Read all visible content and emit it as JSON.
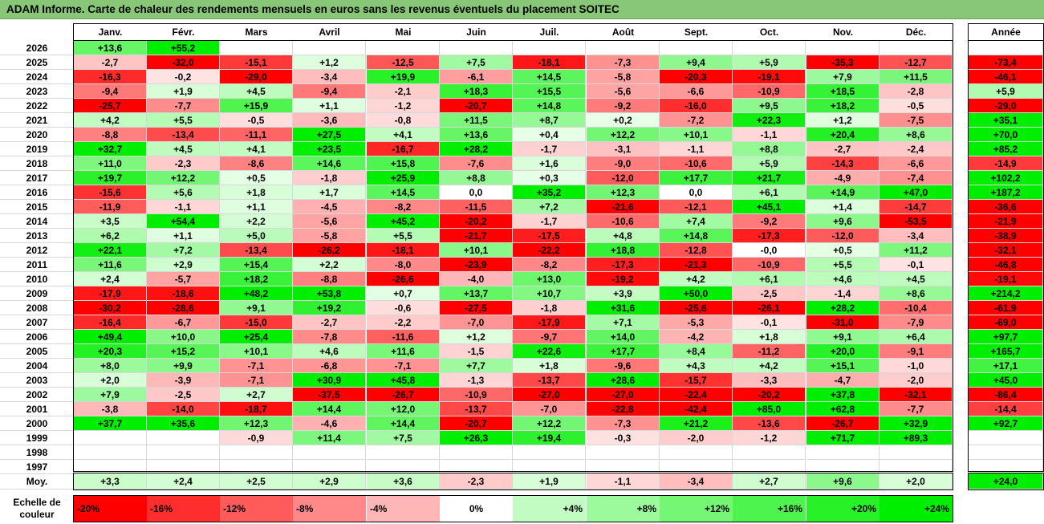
{
  "title": "ADAM Informe. Carte de chaleur des rendements mensuels en euros sans les revenus éventuels du placement SOITEC",
  "chart_data": {
    "type": "heatmap",
    "columns": [
      "Janv.",
      "Févr.",
      "Mars",
      "Avril",
      "Mai",
      "Juin",
      "Juil.",
      "Août",
      "Sept.",
      "Oct.",
      "Nov.",
      "Déc."
    ],
    "annual_header": "Année",
    "avg_label": "Moy.",
    "rows": [
      {
        "year": "2026",
        "months": [
          "+13,6",
          "+55,2",
          "",
          "",
          "",
          "",
          "",
          "",
          "",
          "",
          "",
          ""
        ],
        "annual": ""
      },
      {
        "year": "2025",
        "months": [
          "-2,7",
          "-32,0",
          "-15,1",
          "+1,2",
          "-12,5",
          "+7,5",
          "-18,1",
          "-7,3",
          "+9,4",
          "+5,9",
          "-35,3",
          "-12,7"
        ],
        "annual": "-73,4"
      },
      {
        "year": "2024",
        "months": [
          "-16,3",
          "-0,2",
          "-29,0",
          "-3,4",
          "+19,9",
          "-6,1",
          "+14,5",
          "-5,8",
          "-20,3",
          "-19,1",
          "+7,9",
          "+11,5"
        ],
        "annual": "-46,1"
      },
      {
        "year": "2023",
        "months": [
          "-9,4",
          "+1,9",
          "+4,5",
          "-9,4",
          "-2,1",
          "+18,3",
          "+15,5",
          "-5,6",
          "-6,6",
          "-10,9",
          "+18,5",
          "-2,8"
        ],
        "annual": "+5,9"
      },
      {
        "year": "2022",
        "months": [
          "-25,7",
          "-7,7",
          "+15,9",
          "+1,1",
          "-1,2",
          "-20,7",
          "+14,8",
          "-9,2",
          "-16,0",
          "+9,5",
          "+18,2",
          "-0,5"
        ],
        "annual": "-29,0"
      },
      {
        "year": "2021",
        "months": [
          "+4,2",
          "+5,5",
          "-0,5",
          "-3,6",
          "-0,8",
          "+11,5",
          "+8,7",
          "+0,2",
          "-7,2",
          "+22,3",
          "+1,2",
          "-7,5"
        ],
        "annual": "+35,1"
      },
      {
        "year": "2020",
        "months": [
          "-8,8",
          "-13,4",
          "-11,1",
          "+27,5",
          "+4,1",
          "+13,6",
          "+0,4",
          "+12,2",
          "+10,1",
          "-1,1",
          "+20,4",
          "+8,6"
        ],
        "annual": "+70,0"
      },
      {
        "year": "2019",
        "months": [
          "+32,7",
          "+4,5",
          "+4,1",
          "+23,5",
          "-16,7",
          "+28,2",
          "-1,7",
          "-3,1",
          "-1,1",
          "+8,8",
          "-2,7",
          "-2,4"
        ],
        "annual": "+85,2"
      },
      {
        "year": "2018",
        "months": [
          "+11,0",
          "-2,3",
          "-8,6",
          "+14,6",
          "+15,8",
          "-7,6",
          "+1,6",
          "-9,0",
          "-10,6",
          "+5,9",
          "-14,3",
          "-6,6"
        ],
        "annual": "-14,9"
      },
      {
        "year": "2017",
        "months": [
          "+19,7",
          "+12,2",
          "+0,5",
          "-1,8",
          "+25,9",
          "+8,8",
          "+0,3",
          "-12,0",
          "+17,7",
          "+21,7",
          "-4,9",
          "-7,4"
        ],
        "annual": "+102,2"
      },
      {
        "year": "2016",
        "months": [
          "-15,6",
          "+5,6",
          "+1,8",
          "+1,7",
          "+14,5",
          "0,0",
          "+35,2",
          "+12,3",
          "0,0",
          "+6,1",
          "+14,9",
          "+47,0"
        ],
        "annual": "+187,2"
      },
      {
        "year": "2015",
        "months": [
          "-11,9",
          "-1,1",
          "+1,1",
          "-4,5",
          "-8,2",
          "-11,5",
          "+7,2",
          "-21,6",
          "-12,1",
          "+45,1",
          "+1,4",
          "-14,7"
        ],
        "annual": "-36,6"
      },
      {
        "year": "2014",
        "months": [
          "+3,5",
          "+54,4",
          "+2,2",
          "-5,6",
          "+45,2",
          "-20,2",
          "-1,7",
          "-10,6",
          "+7,4",
          "-9,2",
          "+9,6",
          "-53,5"
        ],
        "annual": "-21,9"
      },
      {
        "year": "2013",
        "months": [
          "+6,2",
          "+1,1",
          "+5,0",
          "-5,8",
          "+5,5",
          "-21,7",
          "-17,5",
          "+4,8",
          "+14,8",
          "-17,3",
          "-12,0",
          "-3,4"
        ],
        "annual": "-38,9"
      },
      {
        "year": "2012",
        "months": [
          "+22,1",
          "+7,2",
          "-13,4",
          "-26,2",
          "-18,1",
          "+10,1",
          "-22,2",
          "+18,8",
          "-12,8",
          "-0,0",
          "+0,5",
          "+11,2"
        ],
        "annual": "-32,1"
      },
      {
        "year": "2011",
        "months": [
          "+11,6",
          "+2,9",
          "+15,4",
          "+2,2",
          "-8,0",
          "-23,9",
          "-8,2",
          "-17,3",
          "-21,3",
          "-10,9",
          "+5,5",
          "-0,1"
        ],
        "annual": "-46,8"
      },
      {
        "year": "2010",
        "months": [
          "+2,4",
          "-5,7",
          "+18,2",
          "-8,8",
          "-26,6",
          "-4,0",
          "+13,0",
          "-19,2",
          "+4,2",
          "+6,1",
          "+4,6",
          "+4,5"
        ],
        "annual": "-19,1"
      },
      {
        "year": "2009",
        "months": [
          "-17,9",
          "-18,6",
          "+48,2",
          "+53,8",
          "+0,7",
          "+13,7",
          "+10,7",
          "+3,9",
          "+50,0",
          "-2,5",
          "-1,4",
          "+8,6"
        ],
        "annual": "+214,2"
      },
      {
        "year": "2008",
        "months": [
          "-30,2",
          "-28,6",
          "+9,1",
          "+19,2",
          "-0,6",
          "-27,5",
          "-1,8",
          "+31,6",
          "-25,6",
          "-26,1",
          "+28,2",
          "-10,4"
        ],
        "annual": "-61,9"
      },
      {
        "year": "2007",
        "months": [
          "-16,4",
          "-6,7",
          "-15,0",
          "-2,7",
          "-2,2",
          "-7,0",
          "-17,9",
          "+7,1",
          "-5,3",
          "-0,1",
          "-31,0",
          "-7,9"
        ],
        "annual": "-69,0"
      },
      {
        "year": "2006",
        "months": [
          "+49,4",
          "+10,0",
          "+25,4",
          "-7,8",
          "-11,6",
          "+1,2",
          "-9,7",
          "+14,0",
          "-4,2",
          "+1,8",
          "+9,1",
          "+6,4"
        ],
        "annual": "+97,7"
      },
      {
        "year": "2005",
        "months": [
          "+20,3",
          "+15,2",
          "+10,1",
          "+4,6",
          "+11,6",
          "-1,5",
          "+22,6",
          "+17,7",
          "+8,4",
          "-11,2",
          "+20,0",
          "-9,1"
        ],
        "annual": "+165,7"
      },
      {
        "year": "2004",
        "months": [
          "+8,0",
          "+9,9",
          "-7,1",
          "-6,8",
          "-7,1",
          "+7,7",
          "+1,8",
          "-9,6",
          "+4,3",
          "+4,2",
          "+15,1",
          "-1,0"
        ],
        "annual": "+17,1"
      },
      {
        "year": "2003",
        "months": [
          "+2,0",
          "-3,9",
          "-7,1",
          "+30,9",
          "+45,8",
          "-1,3",
          "-13,7",
          "+28,6",
          "-15,7",
          "-3,3",
          "-4,7",
          "-2,0"
        ],
        "annual": "+45,0"
      },
      {
        "year": "2002",
        "months": [
          "+7,9",
          "-2,5",
          "+2,7",
          "-37,5",
          "-26,7",
          "-10,9",
          "-27,0",
          "-27,0",
          "-22,4",
          "-20,2",
          "+37,8",
          "-32,1"
        ],
        "annual": "-86,4"
      },
      {
        "year": "2001",
        "months": [
          "-3,8",
          "-14,0",
          "-18,7",
          "+14,4",
          "+12,0",
          "-13,7",
          "-7,0",
          "-22,8",
          "-42,4",
          "+85,0",
          "+62,8",
          "-7,7"
        ],
        "annual": "-14,4"
      },
      {
        "year": "2000",
        "months": [
          "+37,7",
          "+35,6",
          "+12,3",
          "-4,6",
          "+14,4",
          "-20,7",
          "+12,2",
          "-7,3",
          "+21,2",
          "-13,6",
          "-26,7",
          "+32,9"
        ],
        "annual": "+92,7"
      },
      {
        "year": "1999",
        "months": [
          "",
          "",
          "-0,9",
          "+11,4",
          "+7,5",
          "+26,3",
          "+19,4",
          "-0,3",
          "-2,0",
          "-1,2",
          "+71,7",
          "+89,3"
        ],
        "annual": ""
      },
      {
        "year": "1998",
        "months": [
          "",
          "",
          "",
          "",
          "",
          "",
          "",
          "",
          "",
          "",
          "",
          ""
        ],
        "annual": ""
      },
      {
        "year": "1997",
        "months": [
          "",
          "",
          "",
          "",
          "",
          "",
          "",
          "",
          "",
          "",
          "",
          ""
        ],
        "annual": ""
      }
    ],
    "average": {
      "months": [
        "+3,3",
        "+2,4",
        "+2,5",
        "+2,9",
        "+3,6",
        "-2,3",
        "+1,9",
        "-1,1",
        "-3,4",
        "+2,7",
        "+9,6",
        "+2,0"
      ],
      "annual": "+24,0"
    },
    "scale_label": "Echelle de couleur",
    "scale": [
      "-20%",
      "-16%",
      "-12%",
      "-8%",
      "-4%",
      "0%",
      "+4%",
      "+8%",
      "+12%",
      "+16%",
      "+20%",
      "+24%"
    ]
  },
  "colors": {
    "title_bg": "#88c778",
    "neg_max": "#ff0000",
    "neg_min": "#ffe4e4",
    "pos_min": "#eaffea",
    "pos_max": "#00ee00"
  }
}
